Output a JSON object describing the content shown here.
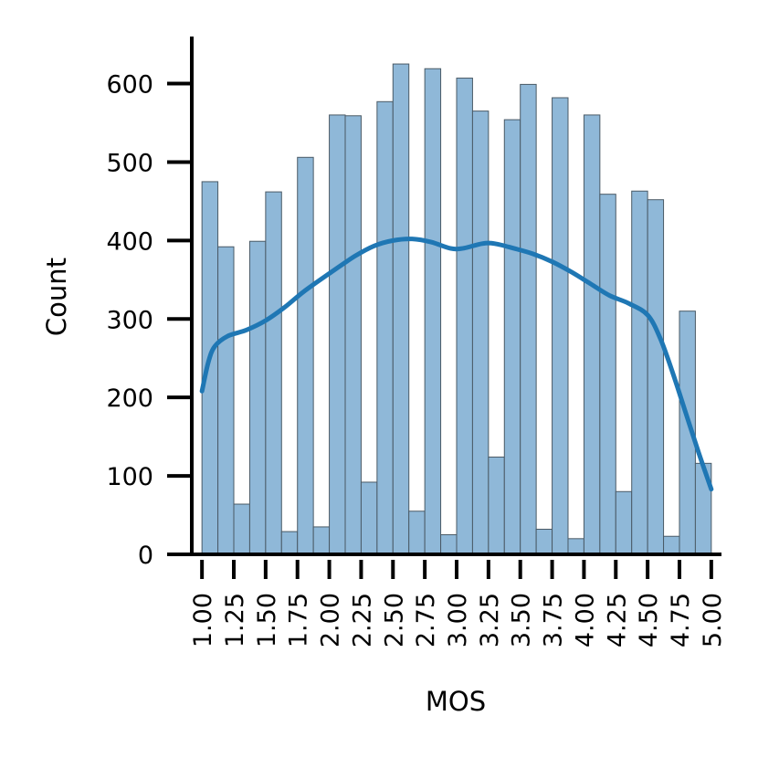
{
  "chart_data": {
    "type": "bar",
    "subtype": "histogram-with-kde",
    "title": "",
    "xlabel": "MOS",
    "ylabel": "Count",
    "xlim": [
      0.92,
      5.08
    ],
    "ylim": [
      0,
      660
    ],
    "grid": false,
    "legend": "none",
    "x_ticks": [
      1.0,
      1.25,
      1.5,
      1.75,
      2.0,
      2.25,
      2.5,
      2.75,
      3.0,
      3.25,
      3.5,
      3.75,
      4.0,
      4.25,
      4.5,
      4.75,
      5.0
    ],
    "x_tick_labels": [
      "1.00",
      "1.25",
      "1.50",
      "1.75",
      "2.00",
      "2.25",
      "2.50",
      "2.75",
      "3.00",
      "3.25",
      "3.50",
      "3.75",
      "4.00",
      "4.25",
      "4.50",
      "4.75",
      "5.00"
    ],
    "y_ticks": [
      0,
      100,
      200,
      300,
      400,
      500,
      600
    ],
    "y_tick_labels": [
      "0",
      "100",
      "200",
      "300",
      "400",
      "500",
      "600"
    ],
    "bins": {
      "start": 1.0,
      "width": 0.125,
      "counts": [
        475,
        392,
        64,
        399,
        462,
        29,
        506,
        35,
        560,
        559,
        92,
        577,
        625,
        55,
        619,
        25,
        607,
        565,
        124,
        554,
        599,
        32,
        582,
        20,
        560,
        459,
        80,
        463,
        452,
        23,
        310,
        116
      ]
    },
    "kde": {
      "x": [
        1.0,
        1.05,
        1.1,
        1.2,
        1.35,
        1.5,
        1.65,
        1.8,
        2.0,
        2.2,
        2.35,
        2.5,
        2.65,
        2.8,
        2.95,
        3.05,
        3.2,
        3.3,
        3.45,
        3.6,
        3.75,
        3.9,
        4.05,
        4.2,
        4.35,
        4.5,
        4.6,
        4.7,
        4.8,
        4.9,
        5.0
      ],
      "y": [
        208,
        245,
        265,
        278,
        286,
        298,
        315,
        335,
        358,
        380,
        393,
        400,
        402,
        398,
        390,
        390,
        396,
        396,
        390,
        383,
        373,
        360,
        345,
        330,
        320,
        305,
        275,
        230,
        180,
        130,
        83
      ]
    },
    "colors": {
      "bar_fill": "#8fb8d8",
      "bar_edge": "#4a5a66",
      "kde_line": "#1f77b4",
      "axis": "#000000"
    }
  }
}
